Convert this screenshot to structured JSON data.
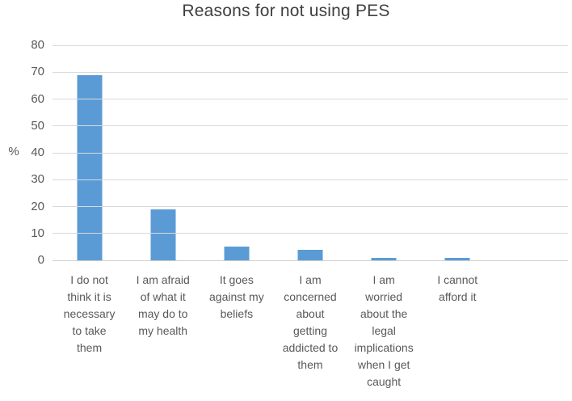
{
  "chart_data": {
    "type": "bar",
    "title": "Reasons for not using PES",
    "ylabel": "%",
    "xlabel": "",
    "categories": [
      "I do not\nthink it is\nnecessary\nto take\nthem",
      "I am afraid\nof what it\nmay do to\nmy health",
      "It goes\nagainst my\nbeliefs",
      "I am\nconcerned\nabout\ngetting\naddicted to\nthem",
      "I am\nworried\nabout the\nlegal\nimplications\nwhen I get\ncaught",
      "I cannot\nafford it"
    ],
    "values": [
      69,
      19,
      5,
      4,
      1,
      1
    ],
    "ylim": [
      0,
      80
    ],
    "yticks": [
      0,
      10,
      20,
      30,
      40,
      50,
      60,
      70,
      80
    ],
    "num_category_slots": 7,
    "grid": "horizontal gridlines on, plot extends beyond last bar",
    "legend": "none",
    "colors": {
      "bar": "#5B9BD5",
      "gridline": "#D9D9D9",
      "axis_line": "#CFCFCF",
      "axis_text": "#595959",
      "title_text": "#404040",
      "background": "#FFFFFF"
    }
  }
}
